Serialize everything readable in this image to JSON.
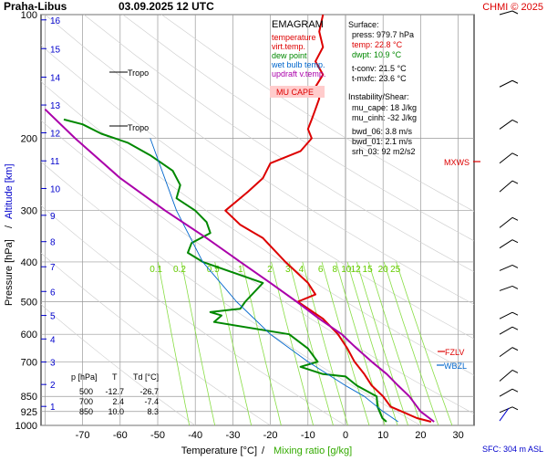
{
  "header": {
    "title": "Praha-Libus",
    "datetime": "03.09.2025 12 UTC",
    "copyright": "CHMI © 2025"
  },
  "legend": {
    "heading": "EMAGRAM",
    "items": [
      {
        "label": "temperature",
        "color": "#dd0000"
      },
      {
        "label": "virt.temp.",
        "color": "#dd0000"
      },
      {
        "label": "dew point",
        "color": "#008800"
      },
      {
        "label": "wet bulb temp.",
        "color": "#0066cc"
      },
      {
        "label": "updraft v.temp.",
        "color": "#aa00aa"
      }
    ],
    "mu_cape_badge": "MU CAPE"
  },
  "surface_info": {
    "heading": "Surface:",
    "press": "press: 979.7 hPa",
    "temp": "temp: 22.8 °C",
    "dwpt": "dwpt: 10.9 °C",
    "t_conv": "t-conv: 21.5 °C",
    "t_mxfc": "t-mxfc: 23.6 °C",
    "instability_heading": "Instability/Shear:",
    "mu_cape": "mu_cape: 18 J/kg",
    "mu_cinh": "mu_cinh: -32 J/kg",
    "bwd_06": "bwd_06: 3.8 m/s",
    "bwd_01": "bwd_01: 2.1 m/s",
    "srh_03": "srh_03: 92 m2/s2"
  },
  "levels_table": {
    "headers": [
      "p [hPa]",
      "T",
      "Td [°C]"
    ],
    "rows": [
      [
        "500",
        "-12.7",
        "-26.7"
      ],
      [
        "700",
        "2.4",
        "-7.4"
      ],
      [
        "850",
        "10.0",
        "8.3"
      ]
    ]
  },
  "level_marks": {
    "tropo": "Tropo",
    "mxws": "MXWS",
    "fzlv": "FZLV",
    "wbzl": "WBZL",
    "sfc": "SFC: 304 m ASL"
  },
  "colors": {
    "temperature": "#dd0000",
    "dewpoint": "#008800",
    "wetbulb": "#0066cc",
    "updraft": "#aa00aa",
    "altitude_ticks": "#0000cc",
    "mixing_ratio": "#88dd44",
    "grid": "#999999"
  },
  "chart_data": {
    "type": "line",
    "title": "Praha-Libus 03.09.2025 12 UTC",
    "xlabel": "Temperature [°C]",
    "xlabel_extra": "Mixing ratio [g/kg]",
    "ylabel": "Pressure [hPa]",
    "ylabel_extra": "Altitude [km]",
    "xlim": [
      -80,
      35
    ],
    "ylim": [
      1000,
      100
    ],
    "y_scale": "log",
    "x_ticks": [
      -70,
      -60,
      -50,
      -40,
      -30,
      -20,
      -10,
      0,
      10,
      20,
      30
    ],
    "y_ticks": [
      1000,
      925,
      850,
      700,
      600,
      500,
      400,
      300,
      200,
      100
    ],
    "altitude_ticks_km": [
      1,
      2,
      3,
      4,
      5,
      6,
      7,
      8,
      9,
      10,
      11,
      12,
      13,
      14,
      15,
      16
    ],
    "mixing_ratio_labels": [
      "0.1",
      "0.2",
      "0.5",
      "1",
      "2",
      "3",
      "4",
      "6",
      "8",
      "10",
      "12",
      "15",
      "20",
      "25"
    ],
    "series": [
      {
        "name": "temperature",
        "color": "#dd0000",
        "points": [
          [
            -6,
            100
          ],
          [
            -7,
            110
          ],
          [
            -6,
            120
          ],
          [
            -8,
            130
          ],
          [
            -6,
            140
          ],
          [
            -8,
            150
          ],
          [
            -7,
            160
          ],
          [
            -8,
            170
          ],
          [
            -9,
            180
          ],
          [
            -10,
            190
          ],
          [
            -9,
            200
          ],
          [
            -12,
            215
          ],
          [
            -20,
            230
          ],
          [
            -22,
            250
          ],
          [
            -26,
            270
          ],
          [
            -32,
            300
          ],
          [
            -28,
            325
          ],
          [
            -22,
            350
          ],
          [
            -16,
            400
          ],
          [
            -10,
            450
          ],
          [
            -8,
            480
          ],
          [
            -12.7,
            500
          ],
          [
            -6,
            550
          ],
          [
            -2,
            600
          ],
          [
            0.5,
            650
          ],
          [
            2.4,
            700
          ],
          [
            5,
            750
          ],
          [
            7,
            800
          ],
          [
            10.0,
            850
          ],
          [
            12,
            900
          ],
          [
            15,
            925
          ],
          [
            19,
            960
          ],
          [
            22.8,
            979.7
          ]
        ]
      },
      {
        "name": "dew point",
        "color": "#008800",
        "points": [
          [
            -75,
            180
          ],
          [
            -70,
            185
          ],
          [
            -65,
            195
          ],
          [
            -58,
            205
          ],
          [
            -52,
            220
          ],
          [
            -46,
            240
          ],
          [
            -44,
            260
          ],
          [
            -45,
            280
          ],
          [
            -40,
            300
          ],
          [
            -37,
            320
          ],
          [
            -36,
            340
          ],
          [
            -41,
            360
          ],
          [
            -42,
            380
          ],
          [
            -38,
            400
          ],
          [
            -22,
            450
          ],
          [
            -26.7,
            500
          ],
          [
            -28,
            520
          ],
          [
            -36,
            530
          ],
          [
            -33,
            540
          ],
          [
            -35,
            560
          ],
          [
            -15,
            600
          ],
          [
            -10,
            650
          ],
          [
            -7.4,
            700
          ],
          [
            -12,
            720
          ],
          [
            -6,
            750
          ],
          [
            0,
            760
          ],
          [
            3,
            800
          ],
          [
            8.3,
            850
          ],
          [
            8.5,
            900
          ],
          [
            9.8,
            960
          ],
          [
            10.9,
            979.7
          ]
        ]
      },
      {
        "name": "wet bulb temp.",
        "color": "#0066cc",
        "points": [
          [
            -52,
            200
          ],
          [
            -45,
            300
          ],
          [
            -38,
            400
          ],
          [
            -29,
            500
          ],
          [
            -20,
            600
          ],
          [
            -10,
            700
          ],
          [
            0,
            800
          ],
          [
            5,
            850
          ],
          [
            10,
            925
          ],
          [
            14,
            979.7
          ]
        ]
      },
      {
        "name": "updraft v.temp.",
        "color": "#aa00aa",
        "points": [
          [
            -80,
            170
          ],
          [
            -72,
            200
          ],
          [
            -60,
            250
          ],
          [
            -48,
            300
          ],
          [
            -37,
            350
          ],
          [
            -28,
            400
          ],
          [
            -20,
            450
          ],
          [
            -13,
            500
          ],
          [
            -7,
            550
          ],
          [
            -1,
            600
          ],
          [
            3,
            650
          ],
          [
            7,
            700
          ],
          [
            11,
            750
          ],
          [
            14,
            800
          ],
          [
            17,
            850
          ],
          [
            20,
            925
          ],
          [
            23.6,
            979.7
          ]
        ]
      }
    ]
  }
}
